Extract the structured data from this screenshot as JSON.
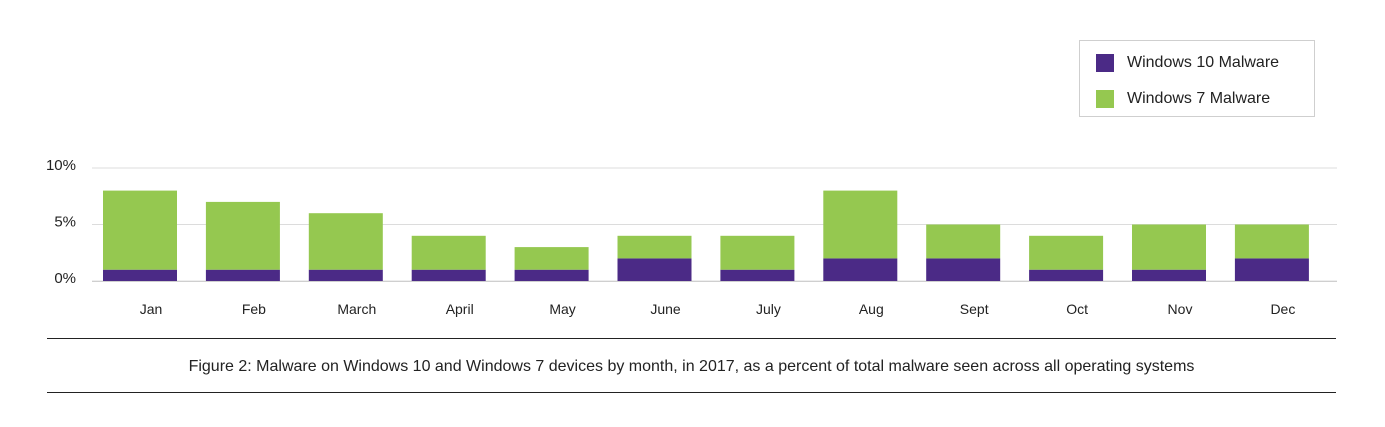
{
  "chart_data": {
    "type": "bar",
    "stacked": true,
    "categories": [
      "Jan",
      "Feb",
      "March",
      "April",
      "May",
      "June",
      "July",
      "Aug",
      "Sept",
      "Oct",
      "Nov",
      "Dec"
    ],
    "series": [
      {
        "name": "Windows 10 Malware",
        "color": "#4b2a86",
        "values": [
          1,
          1,
          1,
          1,
          1,
          2,
          1,
          2,
          2,
          1,
          1,
          2
        ]
      },
      {
        "name": "Windows 7 Malware",
        "color": "#95c850",
        "values": [
          7,
          6,
          5,
          3,
          2,
          2,
          3,
          6,
          3,
          3,
          4,
          3
        ]
      }
    ],
    "y_ticks": [
      "0%",
      "5%",
      "10%"
    ],
    "ylim": [
      0,
      10
    ],
    "grid": true,
    "legend_position": "top-right",
    "caption": "Figure 2:  Malware on Windows 10 and Windows 7 devices by month, in 2017, as a percent of total malware seen across all operating systems"
  }
}
